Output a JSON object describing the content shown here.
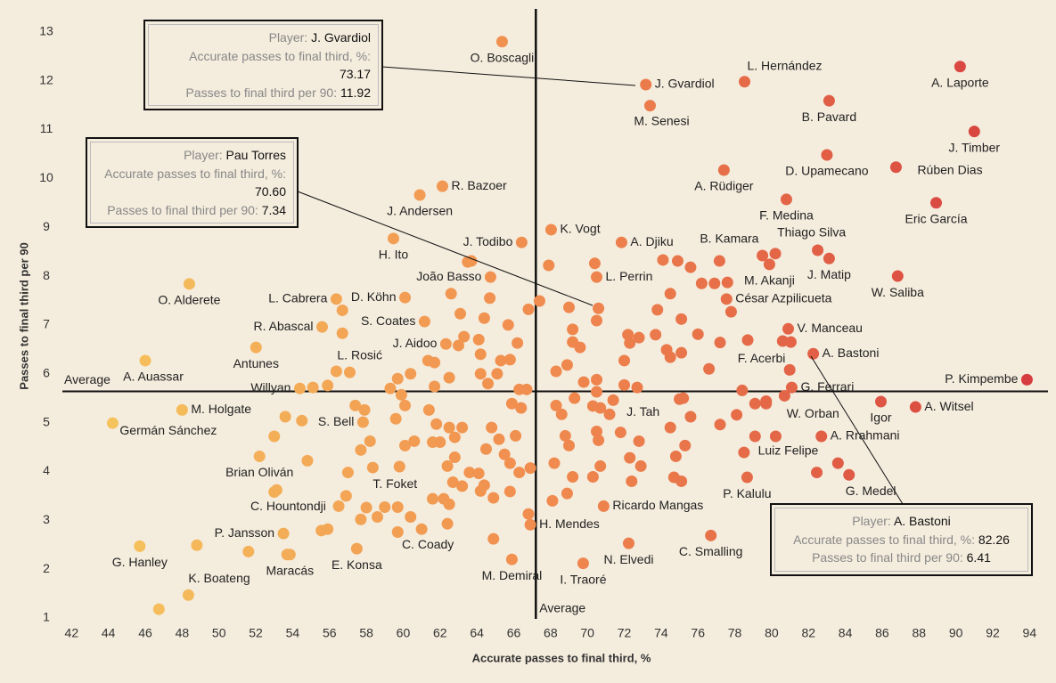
{
  "chart_data": {
    "type": "scatter",
    "x_label": "Accurate passes to final third, %",
    "y_label": "Passes to final third per 90",
    "xlim": [
      41.5,
      95
    ],
    "ylim": [
      0.8,
      13.47
    ],
    "xticks": [
      42,
      44,
      46,
      48,
      50,
      52,
      54,
      56,
      58,
      60,
      62,
      64,
      66,
      68,
      70,
      72,
      74,
      76,
      78,
      80,
      82,
      84,
      86,
      88,
      90,
      92,
      94
    ],
    "yticks": [
      1,
      2,
      3,
      4,
      5,
      6,
      7,
      8,
      9,
      10,
      11,
      12,
      13
    ],
    "grid": false,
    "colors": [
      "#f6c95e",
      "#f08a4e",
      "#d43a3e"
    ],
    "average": {
      "label": "Average",
      "x": 67.2,
      "y": 5.64
    },
    "series": [
      {
        "x": [
          65.37,
          73.17,
          78.53,
          90.23,
          83.12,
          73.4,
          91.0,
          83.0,
          86.75,
          77.41,
          80.8,
          88.93,
          62.13,
          60.9,
          68.03,
          82.5,
          71.85,
          66.43,
          77.17,
          59.47,
          83.12,
          79.88,
          64.74,
          70.5,
          86.84,
          48.39,
          77.55,
          56.37,
          60.1,
          55.6,
          61.16,
          80.9,
          62.32,
          52.01,
          82.26,
          81.04,
          56.37,
          46.0,
          54.39,
          81.09,
          93.86,
          48.0,
          44.23,
          85.93,
          87.81,
          71.4,
          79.7,
          57.82,
          82.7,
          80.22,
          52.2,
          58.35,
          84.2,
          78.67,
          53.13,
          70.88,
          66.9,
          53.5,
          61.0,
          76.7,
          45.7,
          53.85,
          57.48,
          72.24,
          65.9,
          69.77,
          48.34
        ],
        "y": [
          12.8,
          11.92,
          11.98,
          12.29,
          11.59,
          11.49,
          10.96,
          10.48,
          10.23,
          10.17,
          9.57,
          9.5,
          9.84,
          9.66,
          8.95,
          8.53,
          8.69,
          8.69,
          8.31,
          8.77,
          8.36,
          8.24,
          7.98,
          7.98,
          8.0,
          7.84,
          7.53,
          7.53,
          7.56,
          6.96,
          7.07,
          6.92,
          6.61,
          6.54,
          6.41,
          6.65,
          6.05,
          6.27,
          5.7,
          5.72,
          5.88,
          5.26,
          4.99,
          5.43,
          5.32,
          5.46,
          5.39,
          5.01,
          4.72,
          4.72,
          4.31,
          4.08,
          3.93,
          3.88,
          3.62,
          3.29,
          2.91,
          2.73,
          2.82,
          2.69,
          2.47,
          2.3,
          2.42,
          2.53,
          2.2,
          2.12,
          1.47
        ],
        "labels": [
          "O. Boscagli",
          "J. Gvardiol",
          "L. Hernández",
          "A. Laporte",
          "B. Pavard",
          "M. Senesi",
          "J. Timber",
          "D. Upamecano",
          "Rúben Dias",
          "A. Rüdiger",
          "F. Medina",
          "Eric García",
          "R. Bazoer",
          "J. Andersen",
          "K. Vogt",
          "Thiago Silva",
          "A. Djiku",
          "J. Todibo",
          "B. Kamara",
          "H. Ito",
          "J. Matip",
          "M. Akanji",
          "João Basso",
          "L. Perrin",
          "W. Saliba",
          "O. Alderete",
          "César Azpilicueta",
          "L. Cabrera",
          "D. Köhn",
          "R. Abascal",
          "S. Coates",
          "V. Manceau",
          "J. Aidoo",
          "Antunes",
          "A. Bastoni",
          "F. Acerbi",
          "L. Rosić",
          "A. Auassar",
          "Willyan",
          "G. Ferrari",
          "P. Kimpembe",
          "M. Holgate",
          "Germán Sánchez",
          "Igor",
          "A. Witsel",
          "J. Tah",
          "W. Orban",
          "S. Bell",
          "A. Rrahmani",
          "Luiz Felipe",
          "Brian Oliván",
          "T. Foket",
          "G. Medel",
          "P. Kalulu",
          "C. Hountondji",
          "Ricardo Mangas",
          "H. Mendes",
          "P. Jansson",
          "C. Coady",
          "C. Smalling",
          "G. Hanley",
          "Maracás",
          "E. Konsa",
          "N. Elvedi",
          "M. Demiral",
          "I. Traoré",
          "K. Boateng"
        ]
      },
      {
        "x": [
          70.6,
          46.74,
          56.7,
          56.7,
          57.1,
          55.9,
          57.4,
          57.9,
          58.2,
          57.7,
          57.0,
          56.5,
          56.9,
          57.7,
          58.0,
          58.6,
          59.0,
          59.7,
          59.7,
          60.4,
          59.8,
          60.1,
          59.6,
          60.1,
          59.9,
          59.3,
          60.4,
          59.7,
          60.6,
          61.35,
          61.7,
          62.5,
          61.7,
          61.4,
          61.8,
          61.6,
          62.0,
          62.5,
          62.8,
          63.2,
          62.4,
          62.7,
          62.2,
          62.5,
          62.4,
          61.6,
          62.8,
          63.2,
          63.6,
          64.1,
          64.4,
          64.2,
          64.9,
          64.5,
          64.8,
          65.2,
          65.5,
          65.8,
          66.1,
          66.4,
          66.7,
          65.9,
          64.6,
          64.2,
          65.1,
          65.3,
          65.8,
          66.2,
          65.7,
          64.4,
          64.1,
          64.2,
          64.7,
          63.3,
          63.0,
          62.6,
          63.1,
          63.7,
          63.5,
          66.8,
          66.3,
          64.9,
          66.8,
          65.8,
          66.3,
          66.9,
          68.3,
          68.9,
          69.3,
          68.3,
          68.6,
          68.8,
          69.0,
          68.2,
          69.2,
          68.9,
          68.1,
          70.3,
          70.5,
          70.6,
          70.7,
          70.3,
          69.8,
          70.5,
          70.5,
          70.7,
          71.2,
          71.8,
          72.3,
          72.8,
          72.9,
          72.4,
          72.7,
          72.0,
          72.0,
          72.3,
          72.2,
          72.8,
          73.7,
          73.8,
          74.5,
          74.3,
          74.5,
          74.5,
          74.8,
          74.7,
          75.1,
          75.3,
          75.6,
          75.0,
          75.2,
          75.1,
          75.1,
          76.0,
          76.6,
          77.2,
          77.2,
          78.1,
          78.5,
          78.4,
          77.8,
          77.6,
          76.9,
          76.2,
          75.6,
          74.9,
          74.1,
          70.4,
          70.5,
          69.0,
          69.2,
          69.6,
          69.2,
          67.4,
          67.9,
          79.5,
          80.2,
          79.1,
          79.7,
          80.7,
          78.7,
          80.6,
          80.98,
          82.45,
          83.6,
          79.1,
          48.8,
          51.6,
          53.0,
          53.6,
          53.7,
          55.56,
          55.9,
          54.8,
          53.0,
          54.5,
          55.1
        ],
        "y": [
          7.34,
          1.18,
          7.3,
          6.83,
          6.03,
          5.76,
          5.35,
          5.26,
          4.62,
          4.44,
          3.98,
          3.29,
          3.5,
          3.02,
          3.26,
          3.07,
          3.27,
          2.76,
          3.27,
          3.07,
          4.1,
          4.53,
          5.08,
          5.35,
          5.57,
          5.7,
          6.0,
          5.9,
          4.62,
          6.27,
          6.23,
          5.92,
          5.74,
          5.26,
          4.97,
          4.6,
          4.6,
          4.9,
          4.7,
          4.9,
          4.11,
          3.78,
          3.44,
          3.33,
          2.93,
          3.44,
          4.29,
          3.7,
          3.98,
          3.96,
          3.72,
          3.6,
          3.46,
          4.46,
          4.9,
          4.66,
          4.35,
          4.17,
          4.73,
          5.3,
          5.68,
          5.39,
          5.8,
          6.0,
          6.0,
          6.27,
          6.29,
          6.63,
          7.0,
          7.14,
          6.7,
          6.4,
          7.55,
          6.76,
          6.58,
          7.64,
          7.23,
          8.31,
          8.29,
          7.32,
          5.68,
          2.62,
          3.13,
          3.59,
          3.98,
          4.07,
          6.05,
          6.18,
          5.5,
          5.35,
          5.17,
          4.73,
          4.53,
          4.17,
          3.89,
          3.55,
          3.4,
          5.34,
          4.82,
          4.64,
          4.11,
          3.89,
          5.83,
          5.88,
          5.63,
          5.3,
          5.17,
          4.8,
          4.28,
          4.62,
          4.11,
          3.8,
          5.72,
          5.77,
          6.27,
          6.63,
          6.8,
          6.74,
          6.8,
          7.31,
          7.64,
          6.49,
          6.34,
          4.9,
          4.31,
          3.88,
          3.8,
          4.53,
          5.12,
          5.48,
          5.5,
          7.12,
          6.43,
          6.81,
          6.1,
          6.64,
          4.96,
          5.16,
          4.39,
          5.66,
          7.27,
          7.87,
          7.85,
          7.85,
          8.18,
          8.31,
          8.33,
          8.26,
          7.09,
          7.36,
          6.91,
          6.54,
          6.65,
          7.49,
          8.22,
          8.42,
          8.46,
          5.39,
          5.44,
          5.55,
          6.69,
          6.67,
          6.08,
          3.98,
          4.17,
          4.72,
          2.49,
          2.36,
          4.72,
          5.12,
          2.3,
          2.79,
          2.82,
          4.22,
          3.58,
          5.04,
          5.72
        ]
      }
    ],
    "callout_labels": {
      "player": "Player:",
      "x": "Accurate passes to final third, %:",
      "y": "Passes to final third per 90:"
    },
    "annotations": [
      {
        "player": "J. Gvardiol",
        "x": "73.17",
        "y": "11.92"
      },
      {
        "player": "Pau Torres",
        "x": "70.60",
        "y": "7.34"
      },
      {
        "player": "A. Bastoni",
        "x": "82.26",
        "y": "6.41"
      }
    ]
  }
}
